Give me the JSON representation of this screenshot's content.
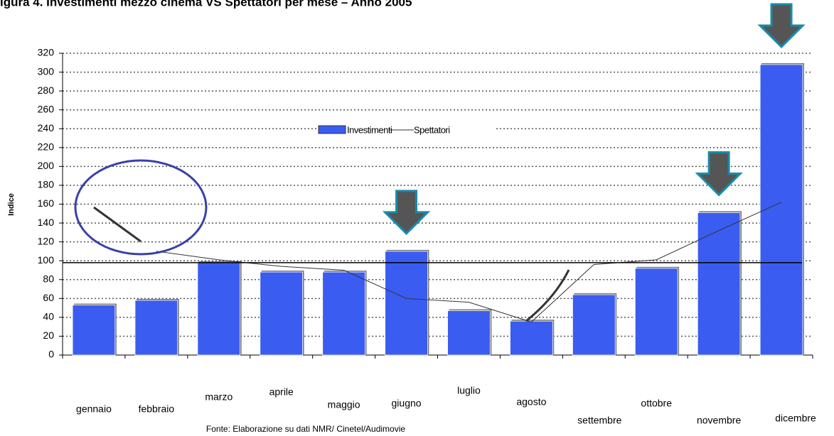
{
  "chart_data": {
    "type": "bar",
    "title": "igura 4. Investimenti mezzo cinema VS Spettatori per mese – Anno 2005",
    "y_label": "Indice",
    "source": "Fonte: Elaborazione su dati NMR/ Cinetel/Audimovie",
    "categories": [
      "gennaio",
      "febbraio",
      "marzo",
      "aprile",
      "maggio",
      "giugno",
      "luglio",
      "agosto",
      "settembre",
      "ottobre",
      "novembre",
      "dicembre"
    ],
    "series": [
      {
        "name": "Investimenti",
        "type": "bar",
        "color": "#3a5cf0",
        "values": [
          53,
          58,
          98,
          88,
          88,
          110,
          47,
          36,
          64,
          92,
          151,
          308
        ]
      },
      {
        "name": "Spettatori",
        "type": "line",
        "color": "#333333",
        "values": [
          null,
          110,
          101,
          94,
          90,
          60,
          56,
          35,
          96,
          101,
          132,
          162
        ]
      }
    ],
    "reference_line": 98,
    "ylim": [
      0,
      320
    ],
    "yticks": [
      0,
      20,
      40,
      60,
      80,
      100,
      120,
      140,
      160,
      180,
      200,
      220,
      240,
      260,
      280,
      300,
      320
    ],
    "grid": true,
    "legend": "top"
  }
}
